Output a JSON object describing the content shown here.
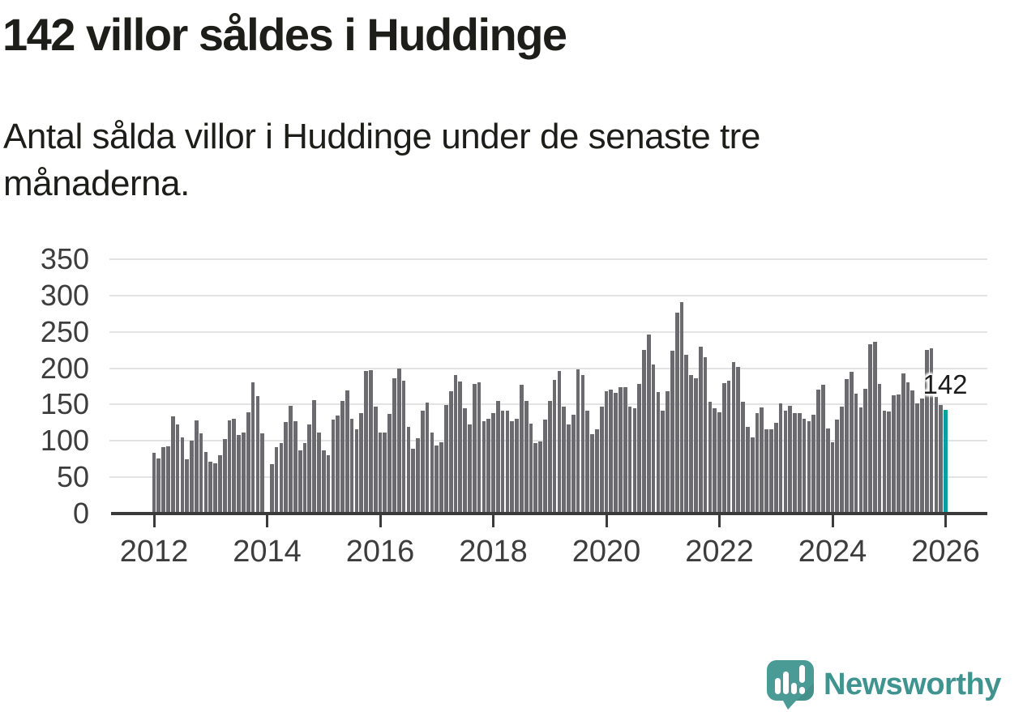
{
  "header": {
    "title": "142 villor såldes i Huddinge",
    "subtitle_lines": [
      "Antal sålda villor i Huddinge under de senaste tre",
      "månaderna."
    ]
  },
  "footer": {
    "brand": "Newsworthy"
  },
  "chart_data": {
    "type": "bar",
    "title": "142 villor såldes i Huddinge",
    "xlabel": "",
    "ylabel": "",
    "ylim": [
      0,
      350
    ],
    "grid": true,
    "y_ticks": [
      350,
      300,
      250,
      200,
      150,
      100,
      50,
      0
    ],
    "x_tick_labels": [
      "2012",
      "2014",
      "2016",
      "2018",
      "2020",
      "2022",
      "2024",
      "2026"
    ],
    "start_month": "2012-01",
    "end_month": "2026-01",
    "bar_color": "#6b6b6f",
    "highlight_color": "#0aa09e",
    "gridline_color": "#e3e3e3",
    "annotation": {
      "text": "142",
      "month": "2026-01",
      "value": 142
    },
    "note": "value missing for 2014-01",
    "values": [
      83,
      75,
      90,
      91,
      133,
      122,
      104,
      74,
      99,
      127,
      109,
      84,
      70,
      68,
      79,
      101,
      127,
      129,
      107,
      110,
      138,
      180,
      161,
      109,
      null,
      67,
      90,
      96,
      125,
      147,
      126,
      86,
      96,
      121,
      155,
      110,
      86,
      79,
      128,
      134,
      154,
      168,
      129,
      115,
      137,
      195,
      196,
      146,
      110,
      110,
      136,
      185,
      199,
      182,
      118,
      88,
      103,
      141,
      152,
      110,
      93,
      97,
      148,
      167,
      190,
      181,
      144,
      121,
      177,
      179,
      126,
      129,
      137,
      154,
      140,
      140,
      126,
      129,
      176,
      154,
      123,
      96,
      98,
      128,
      154,
      183,
      195,
      146,
      121,
      135,
      197,
      190,
      140,
      108,
      115,
      146,
      167,
      170,
      165,
      173,
      173,
      146,
      144,
      177,
      224,
      245,
      204,
      166,
      141,
      167,
      223,
      275,
      290,
      217,
      190,
      185,
      229,
      214,
      153,
      144,
      138,
      178,
      182,
      207,
      201,
      153,
      118,
      104,
      137,
      145,
      115,
      115,
      124,
      150,
      141,
      147,
      137,
      137,
      129,
      126,
      135,
      169,
      176,
      116,
      97,
      128,
      146,
      184,
      194,
      164,
      145,
      171,
      232,
      235,
      177,
      141,
      139,
      162,
      163,
      192,
      180,
      168,
      151,
      157,
      224,
      226,
      160,
      148,
      142
    ]
  }
}
